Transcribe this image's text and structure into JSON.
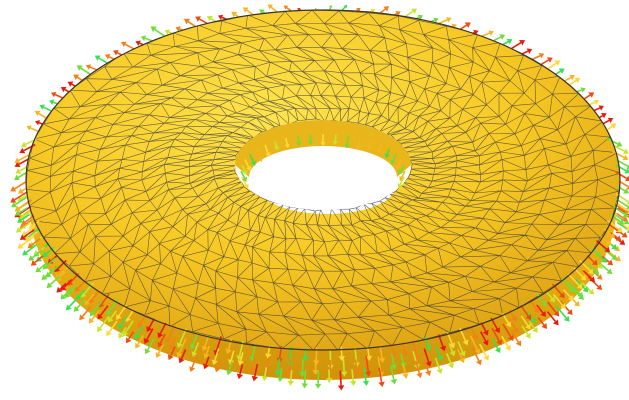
{
  "scene": {
    "subject": "torus-mesh",
    "render_style": "shaded surface with triangle wireframe and normal-vector arrows",
    "colors": {
      "background": "#ffffff",
      "surface_light": "#ffe44d",
      "surface_mid": "#f5c21a",
      "surface_dark": "#d69a0c",
      "wireframe": "#2f3440",
      "arrow_palette": [
        "#e81a0c",
        "#f04a10",
        "#f57f17",
        "#f8b421",
        "#ffd93a",
        "#c8e52e",
        "#6fdc3b",
        "#39e04f"
      ]
    }
  }
}
